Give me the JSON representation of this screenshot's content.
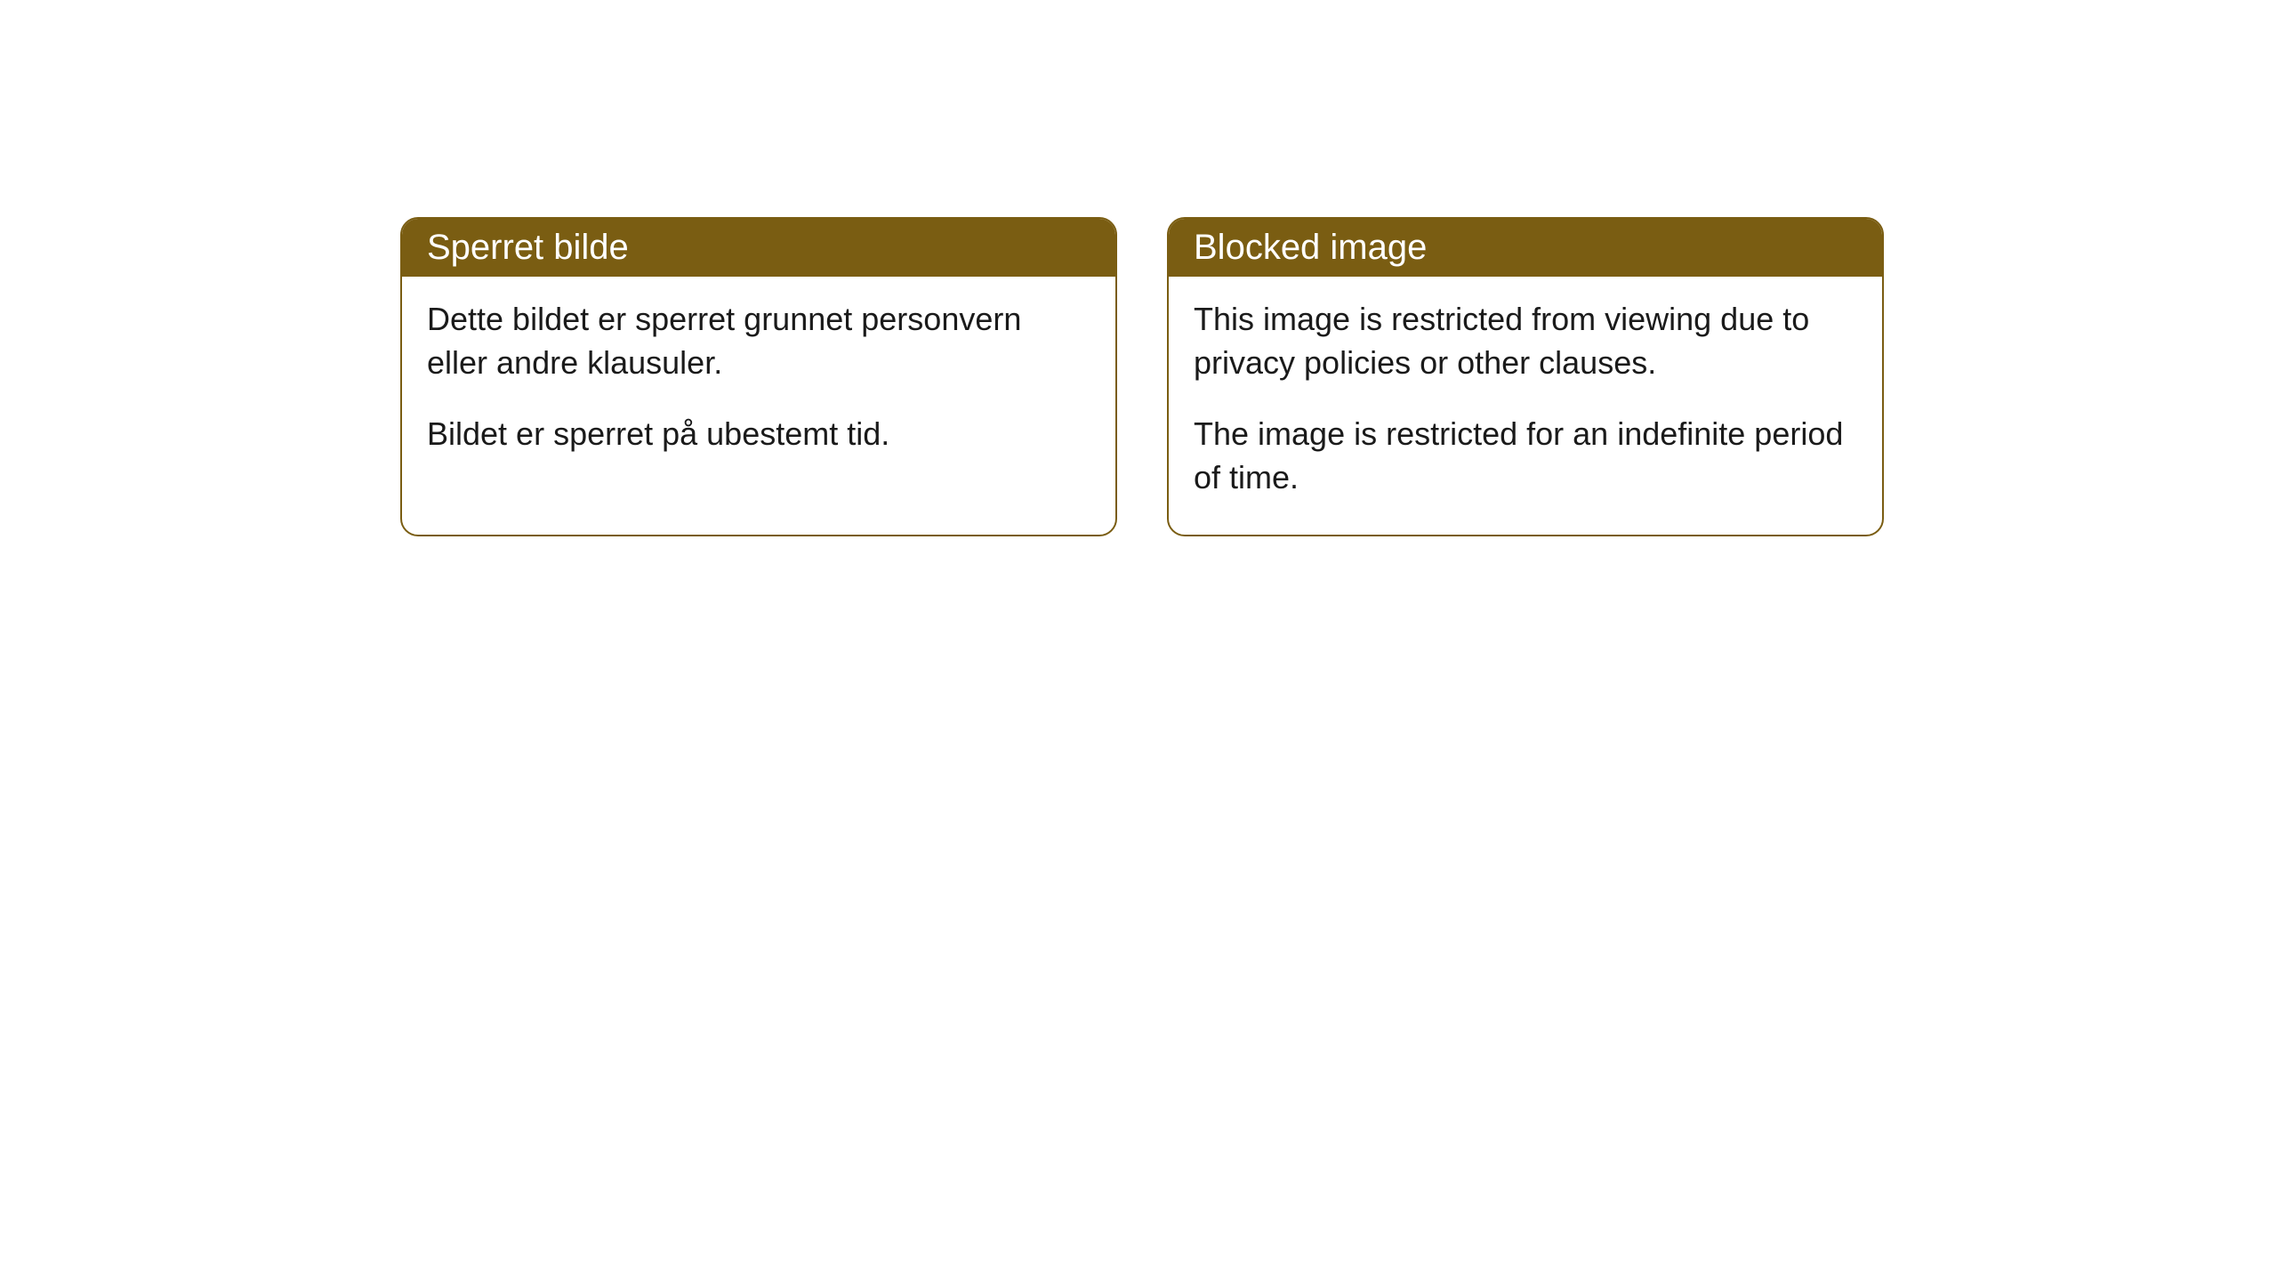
{
  "cards": [
    {
      "header": "Sperret bilde",
      "paragraph1": "Dette bildet er sperret grunnet personvern eller andre klausuler.",
      "paragraph2": "Bildet er sperret på ubestemt tid."
    },
    {
      "header": "Blocked image",
      "paragraph1": "This image is restricted from viewing due to privacy policies or other clauses.",
      "paragraph2": "The image is restricted for an indefinite period of time."
    }
  ],
  "style": {
    "header_bg": "#7a5d12",
    "header_text_color": "#ffffff",
    "border_color": "#7a5d12",
    "body_bg": "#ffffff",
    "body_text_color": "#1a1a1a",
    "border_radius": 20,
    "header_fontsize": 40,
    "body_fontsize": 36
  }
}
